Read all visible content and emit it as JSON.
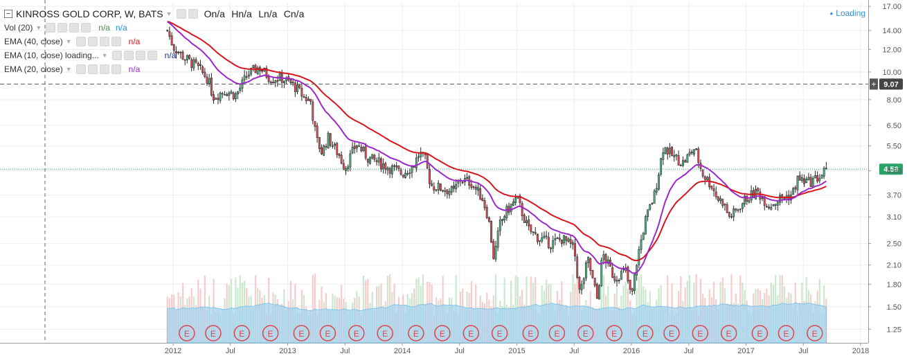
{
  "header": {
    "symbol": "KINROSS GOLD CORP, W, BATS",
    "ohlc": [
      "On/a",
      "Hn/a",
      "Ln/a",
      "Cn/a"
    ],
    "status": "Loading"
  },
  "indicators": [
    {
      "label": "Vol (20)",
      "values": [
        {
          "text": "n/a",
          "color": "#2e9a4a"
        },
        {
          "text": "n/a",
          "color": "#2e8fd8"
        }
      ]
    },
    {
      "label": "EMA (40, close)",
      "values": [
        {
          "text": "n/a",
          "color": "#d8141c"
        }
      ]
    },
    {
      "label": "EMA (10, close) loading...",
      "values": [
        {
          "text": "n/a",
          "color": "#1c2a8c"
        }
      ]
    },
    {
      "label": "EMA (20, close)",
      "values": [
        {
          "text": "n/a",
          "color": "#9b27c9"
        }
      ]
    }
  ],
  "chart_data": {
    "type": "candlestick",
    "scale": "log",
    "ylim": [
      1.12,
      17.5
    ],
    "y_ticks": [
      "17.00",
      "14.00",
      "12.00",
      "10.00",
      "8.00",
      "6.50",
      "5.50",
      "4.50",
      "3.70",
      "3.10",
      "2.50",
      "2.10",
      "1.80",
      "1.50",
      "1.25"
    ],
    "x_ticks": [
      {
        "label": "2012",
        "t": 2012.0
      },
      {
        "label": "Jul",
        "t": 2012.5
      },
      {
        "label": "2013",
        "t": 2013.0
      },
      {
        "label": "Jul",
        "t": 2013.5
      },
      {
        "label": "2014",
        "t": 2014.0
      },
      {
        "label": "Jul",
        "t": 2014.5
      },
      {
        "label": "2015",
        "t": 2015.0
      },
      {
        "label": "Jul",
        "t": 2015.5
      },
      {
        "label": "2016",
        "t": 2016.0
      },
      {
        "label": "Jul",
        "t": 2016.5
      },
      {
        "label": "2017",
        "t": 2017.0
      },
      {
        "label": "Jul",
        "t": 2017.5
      },
      {
        "label": "2018",
        "t": 2018.0
      }
    ],
    "xlim": [
      2011.99,
      2018.05
    ],
    "price_path": [
      [
        2011.95,
        14.0
      ],
      [
        2012.0,
        12.3
      ],
      [
        2012.1,
        11.2
      ],
      [
        2012.2,
        10.5
      ],
      [
        2012.3,
        9.5
      ],
      [
        2012.35,
        8.2
      ],
      [
        2012.45,
        8.6
      ],
      [
        2012.55,
        8.3
      ],
      [
        2012.65,
        9.8
      ],
      [
        2012.75,
        10.4
      ],
      [
        2012.85,
        9.5
      ],
      [
        2012.95,
        9.5
      ],
      [
        2013.05,
        9.0
      ],
      [
        2013.15,
        8.1
      ],
      [
        2013.2,
        7.9
      ],
      [
        2013.25,
        5.8
      ],
      [
        2013.3,
        5.2
      ],
      [
        2013.35,
        5.9
      ],
      [
        2013.45,
        5.1
      ],
      [
        2013.5,
        4.6
      ],
      [
        2013.6,
        5.6
      ],
      [
        2013.7,
        5.0
      ],
      [
        2013.8,
        4.8
      ],
      [
        2013.9,
        4.6
      ],
      [
        2014.0,
        4.4
      ],
      [
        2014.1,
        4.7
      ],
      [
        2014.15,
        5.2
      ],
      [
        2014.2,
        4.9
      ],
      [
        2014.25,
        4.0
      ],
      [
        2014.35,
        3.9
      ],
      [
        2014.45,
        3.8
      ],
      [
        2014.5,
        4.2
      ],
      [
        2014.6,
        4.1
      ],
      [
        2014.7,
        3.6
      ],
      [
        2014.75,
        3.1
      ],
      [
        2014.8,
        2.2
      ],
      [
        2014.85,
        2.9
      ],
      [
        2014.9,
        3.2
      ],
      [
        2015.0,
        3.6
      ],
      [
        2015.1,
        2.8
      ],
      [
        2015.2,
        2.6
      ],
      [
        2015.3,
        2.5
      ],
      [
        2015.4,
        2.6
      ],
      [
        2015.5,
        2.4
      ],
      [
        2015.55,
        1.65
      ],
      [
        2015.62,
        2.2
      ],
      [
        2015.7,
        1.6
      ],
      [
        2015.75,
        2.3
      ],
      [
        2015.85,
        1.9
      ],
      [
        2015.95,
        2.0
      ],
      [
        2016.0,
        1.6
      ],
      [
        2016.05,
        2.2
      ],
      [
        2016.12,
        3.0
      ],
      [
        2016.2,
        3.7
      ],
      [
        2016.28,
        5.5
      ],
      [
        2016.35,
        5.1
      ],
      [
        2016.45,
        4.8
      ],
      [
        2016.55,
        5.4
      ],
      [
        2016.62,
        4.4
      ],
      [
        2016.7,
        4.0
      ],
      [
        2016.75,
        3.6
      ],
      [
        2016.8,
        3.5
      ],
      [
        2016.85,
        3.1
      ],
      [
        2016.9,
        3.2
      ],
      [
        2017.0,
        3.6
      ],
      [
        2017.1,
        3.8
      ],
      [
        2017.2,
        3.4
      ],
      [
        2017.3,
        3.6
      ],
      [
        2017.4,
        3.7
      ],
      [
        2017.45,
        4.2
      ],
      [
        2017.55,
        4.1
      ],
      [
        2017.65,
        4.3
      ],
      [
        2017.7,
        4.56
      ]
    ],
    "ema_fast": {
      "name": "EMA (20, close)",
      "color": "#9b27c9",
      "period": 20
    },
    "ema_slow": {
      "name": "EMA (40, close)",
      "color": "#d8141c",
      "period": 40
    },
    "volume": {
      "name": "Vol (20)",
      "up_color": "#cbe8cf",
      "down_color": "#f6cdcd",
      "area_color": "#9fd2f0"
    },
    "earnings_marker": "E",
    "earnings_t": [
      2012.12,
      2012.35,
      2012.6,
      2012.85,
      2013.12,
      2013.35,
      2013.6,
      2013.85,
      2014.12,
      2014.35,
      2014.6,
      2014.85,
      2015.12,
      2015.35,
      2015.6,
      2015.85,
      2016.12,
      2016.35,
      2016.6,
      2016.85,
      2017.12,
      2017.35,
      2017.6
    ],
    "h_lines": [
      {
        "value": 9.07,
        "label": "9.07",
        "style": "dash",
        "color": "#555555",
        "badge": "#444444",
        "plus": "+"
      },
      {
        "value": 4.56,
        "label": "4.56",
        "style": "dot",
        "color": "#2aa36b",
        "badge": "#2aa36b"
      }
    ],
    "crosshair_t": 2011.8
  }
}
